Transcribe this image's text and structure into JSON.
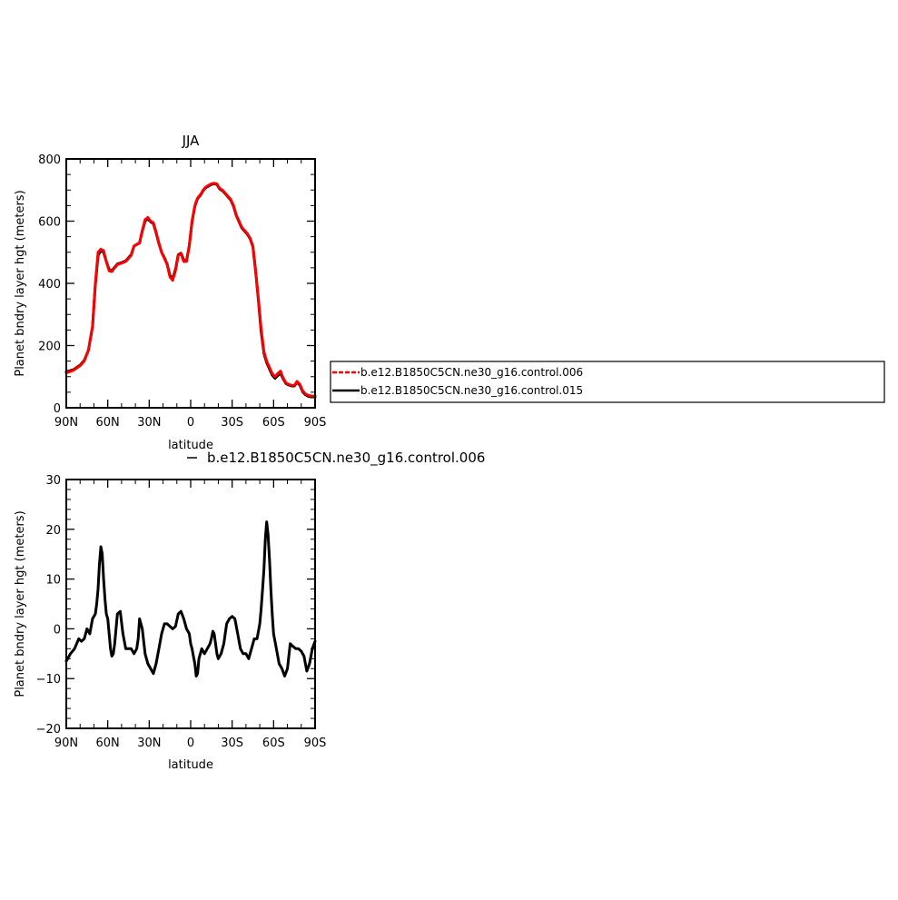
{
  "chart_data": [
    {
      "type": "line",
      "title": "JJA",
      "xlabel": "latitude",
      "ylabel": "Planet bndry layer hgt (meters)",
      "xlim": [
        -90,
        90
      ],
      "ylim": [
        0,
        800
      ],
      "x_ticks": [
        -90,
        -60,
        -30,
        0,
        30,
        60,
        90
      ],
      "x_tick_labels": [
        "90N",
        "60N",
        "30N",
        "0",
        "30S",
        "60S",
        "90S"
      ],
      "y_ticks": [
        0,
        200,
        400,
        600,
        800
      ],
      "y_tick_labels": [
        "0",
        "200",
        "400",
        "600",
        "800"
      ],
      "legend": "right",
      "series": [
        {
          "name": "b.e12.B1850C5CN.ne30_g16.control.006",
          "color": "#ff0000",
          "style": "dashed",
          "x": [
            -90,
            -85,
            -80,
            -77,
            -74,
            -71,
            -69,
            -67,
            -65,
            -63,
            -61,
            -59,
            -57,
            -55,
            -53,
            -50,
            -47,
            -45,
            -43,
            -41,
            -39,
            -37,
            -35,
            -33,
            -31,
            -29,
            -27,
            -25,
            -23,
            -21,
            -19,
            -17,
            -15,
            -13,
            -11,
            -9,
            -7,
            -5,
            -3,
            -1,
            1,
            3,
            5,
            7,
            9,
            11,
            13,
            15,
            17,
            19,
            21,
            23,
            25,
            27,
            29,
            31,
            33,
            35,
            37,
            39,
            41,
            43,
            45,
            47,
            49,
            51,
            53,
            55,
            57,
            59,
            61,
            63,
            65,
            67,
            69,
            71,
            73,
            75,
            77,
            79,
            81,
            83,
            85,
            87,
            90
          ],
          "y": [
            112,
            120,
            135,
            150,
            185,
            260,
            400,
            500,
            510,
            505,
            470,
            440,
            438,
            450,
            460,
            465,
            470,
            480,
            490,
            520,
            525,
            530,
            570,
            605,
            612,
            600,
            595,
            565,
            530,
            500,
            480,
            460,
            420,
            410,
            440,
            490,
            495,
            470,
            470,
            520,
            600,
            650,
            675,
            685,
            700,
            710,
            715,
            720,
            722,
            720,
            705,
            700,
            690,
            680,
            670,
            650,
            620,
            600,
            580,
            570,
            560,
            545,
            520,
            440,
            350,
            255,
            180,
            150,
            130,
            110,
            100,
            110,
            118,
            95,
            80,
            75,
            72,
            72,
            85,
            75,
            55,
            45,
            40,
            38,
            38
          ]
        },
        {
          "name": "b.e12.B1850C5CN.ne30_g16.control.015",
          "color": "#000000",
          "style": "solid",
          "x": [
            -90,
            -85,
            -80,
            -77,
            -74,
            -71,
            -69,
            -67,
            -65,
            -63,
            -61,
            -59,
            -57,
            -55,
            -53,
            -50,
            -47,
            -45,
            -43,
            -41,
            -39,
            -37,
            -35,
            -33,
            -31,
            -29,
            -27,
            -25,
            -23,
            -21,
            -19,
            -17,
            -15,
            -13,
            -11,
            -9,
            -7,
            -5,
            -3,
            -1,
            1,
            3,
            5,
            7,
            9,
            11,
            13,
            15,
            17,
            19,
            21,
            23,
            25,
            27,
            29,
            31,
            33,
            35,
            37,
            39,
            41,
            43,
            45,
            47,
            49,
            51,
            53,
            55,
            57,
            59,
            61,
            63,
            65,
            67,
            69,
            71,
            73,
            75,
            77,
            79,
            81,
            83,
            85,
            87,
            90
          ],
          "y": [
            116,
            122,
            137,
            152,
            185,
            260,
            395,
            490,
            505,
            500,
            470,
            445,
            440,
            452,
            462,
            467,
            472,
            482,
            492,
            520,
            525,
            530,
            568,
            600,
            607,
            598,
            592,
            563,
            528,
            500,
            482,
            462,
            425,
            415,
            445,
            492,
            497,
            475,
            472,
            522,
            598,
            648,
            673,
            683,
            698,
            708,
            713,
            718,
            720,
            718,
            703,
            698,
            688,
            678,
            668,
            648,
            618,
            598,
            578,
            568,
            558,
            543,
            518,
            440,
            345,
            245,
            175,
            145,
            125,
            105,
            95,
            103,
            112,
            92,
            78,
            73,
            70,
            70,
            82,
            72,
            52,
            42,
            37,
            35,
            35
          ]
        }
      ]
    },
    {
      "type": "line",
      "title": "",
      "xlabel": "latitude",
      "ylabel": "Planet bndry layer hgt (meters)",
      "xlim": [
        -90,
        90
      ],
      "ylim": [
        -20,
        30
      ],
      "x_ticks": [
        -90,
        -60,
        -30,
        0,
        30,
        60,
        90
      ],
      "x_tick_labels": [
        "90N",
        "60N",
        "30N",
        "0",
        "30S",
        "60S",
        "90S"
      ],
      "y_ticks": [
        -20,
        -10,
        0,
        10,
        20,
        30
      ],
      "y_tick_labels": [
        "−20",
        "−10",
        "0",
        "10",
        "20",
        "30"
      ],
      "legend": "top",
      "series": [
        {
          "name": "b.e12.B1850C5CN.ne30_g16.control.006",
          "color": "#000000",
          "style": "solid",
          "x": [
            -90,
            -87,
            -84,
            -81,
            -79,
            -77,
            -75,
            -73,
            -71,
            -69,
            -68,
            -67,
            -66,
            -65,
            -64,
            -63,
            -62,
            -61,
            -60,
            -59,
            -58,
            -57,
            -56,
            -55,
            -54,
            -53,
            -51,
            -49,
            -47,
            -45,
            -43,
            -41,
            -39,
            -38,
            -37,
            -35,
            -33,
            -31,
            -29,
            -27,
            -25,
            -23,
            -21,
            -19,
            -17,
            -15,
            -13,
            -11,
            -9,
            -7,
            -5,
            -3,
            -1,
            0,
            1,
            2,
            3,
            4,
            5,
            6,
            8,
            10,
            12,
            14,
            15,
            16,
            17,
            18,
            19,
            20,
            22,
            24,
            26,
            28,
            30,
            32,
            34,
            36,
            38,
            40,
            42,
            44,
            46,
            48,
            50,
            51,
            52,
            53,
            54,
            55,
            56,
            57,
            58,
            59,
            60,
            62,
            64,
            66,
            68,
            70,
            72,
            74,
            76,
            78,
            80,
            82,
            84,
            86,
            88,
            90
          ],
          "y": [
            -6.5,
            -5,
            -4,
            -2,
            -2.5,
            -2,
            0,
            -1,
            2,
            3,
            5,
            8,
            13,
            16.5,
            15,
            10,
            6,
            3,
            2,
            -1,
            -4,
            -5.5,
            -5,
            -3,
            0,
            3,
            3.5,
            -1,
            -4,
            -4,
            -4,
            -5,
            -4,
            -2,
            2,
            0,
            -5,
            -7,
            -8,
            -9,
            -7,
            -4,
            -1,
            1,
            1,
            0.5,
            0,
            0.5,
            3,
            3.5,
            2,
            0,
            -1,
            -3,
            -4,
            -5.5,
            -7,
            -9.5,
            -9,
            -6,
            -4,
            -5,
            -4,
            -3,
            -2,
            -0.5,
            -1,
            -3,
            -5,
            -6,
            -5,
            -3,
            1,
            2,
            2.5,
            2,
            -1,
            -4,
            -5,
            -5,
            -6,
            -4,
            -2,
            -2,
            1,
            4,
            8,
            12,
            18,
            21.5,
            19,
            14,
            8,
            3,
            -1,
            -4,
            -7,
            -8,
            -9.5,
            -8,
            -3,
            -3.5,
            -4,
            -4,
            -4.5,
            -5.5,
            -8.5,
            -7,
            -4,
            -2.5
          ]
        }
      ]
    }
  ]
}
